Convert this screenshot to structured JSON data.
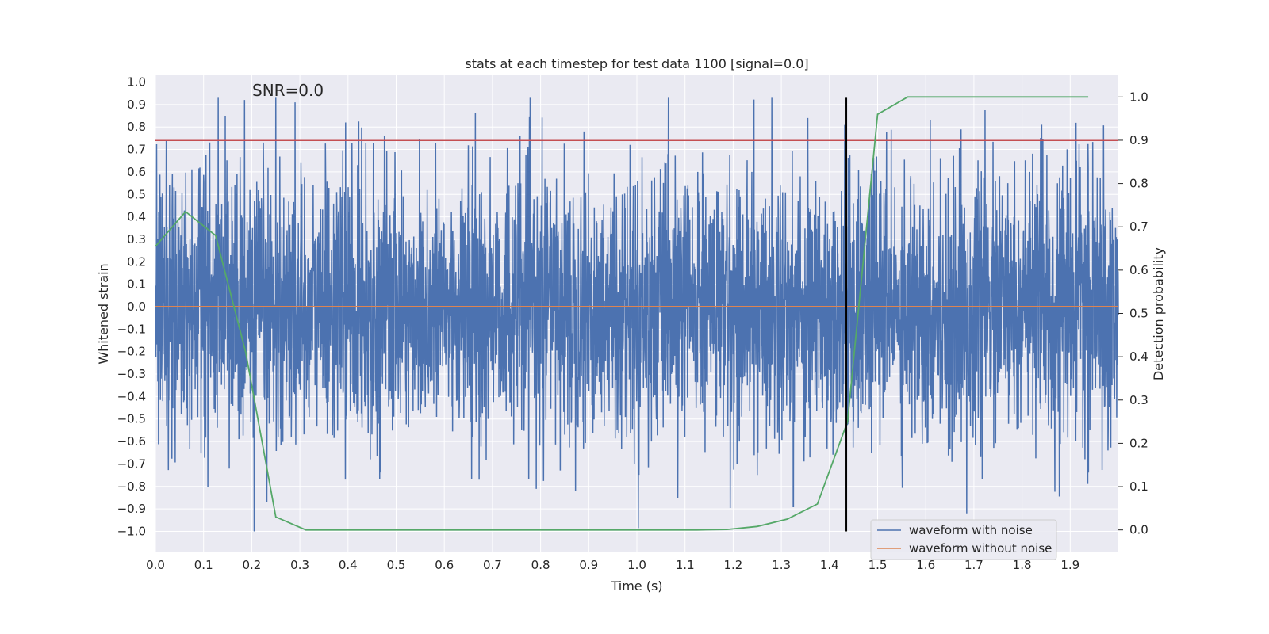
{
  "chart_data": {
    "type": "line",
    "title": "stats at each timestep for test data 1100 [signal=0.0]",
    "xlabel": "Time (s)",
    "ylabel": "Whitened strain",
    "y2label": "Detection probability",
    "xlim": [
      0.0,
      2.0
    ],
    "ylim": [
      -1.09,
      1.03
    ],
    "y2lim": [
      -0.05,
      1.05
    ],
    "xticks": [
      "0.0",
      "0.1",
      "0.2",
      "0.3",
      "0.4",
      "0.5",
      "0.6",
      "0.7",
      "0.8",
      "0.9",
      "1.0",
      "1.1",
      "1.2",
      "1.3",
      "1.4",
      "1.5",
      "1.6",
      "1.7",
      "1.8",
      "1.9"
    ],
    "yticks": [
      "1.0",
      "0.9",
      "0.8",
      "0.7",
      "0.6",
      "0.5",
      "0.4",
      "0.3",
      "0.2",
      "0.1",
      "0.0",
      "−0.1",
      "−0.2",
      "−0.3",
      "−0.4",
      "−0.5",
      "−0.6",
      "−0.7",
      "−0.8",
      "−0.9",
      "−1.0"
    ],
    "y2ticks": [
      "1.0",
      "0.9",
      "0.8",
      "0.7",
      "0.6",
      "0.5",
      "0.4",
      "0.3",
      "0.2",
      "0.1",
      "0.0"
    ],
    "annotation": "SNR=0.0",
    "grid": true,
    "legend_placement": "lower-right",
    "series": [
      {
        "name": "waveform with noise",
        "axis": "left",
        "color": "#4c72b0",
        "sample_rate_hz": 2048,
        "t_start": 0.0,
        "t_end": 2.0,
        "y_range": [
          -1.0,
          0.93
        ],
        "notable_peaks": [
          {
            "x": 0.145,
            "y": 0.85
          },
          {
            "x": 0.185,
            "y": 0.92
          },
          {
            "x": 0.25,
            "y": 0.93
          },
          {
            "x": 0.395,
            "y": 0.82
          },
          {
            "x": 0.89,
            "y": 0.78
          },
          {
            "x": 1.355,
            "y": 0.84
          },
          {
            "x": 0.205,
            "y": -1.0
          },
          {
            "x": 1.085,
            "y": -0.85
          },
          {
            "x": 1.325,
            "y": -0.89
          },
          {
            "x": 1.685,
            "y": -0.92
          }
        ]
      },
      {
        "name": "waveform without noise",
        "axis": "left",
        "color": "#dd8452",
        "x": [
          0.0,
          2.0
        ],
        "y": [
          0.0,
          0.0
        ]
      },
      {
        "name": "",
        "axis": "right",
        "color": "#55a868",
        "x": [
          0.0,
          0.0625,
          0.125,
          0.1875,
          0.25,
          0.3125,
          0.375,
          0.4375,
          0.5,
          0.5625,
          0.625,
          0.6875,
          0.75,
          0.8125,
          0.875,
          0.9375,
          1.0,
          1.0625,
          1.125,
          1.1875,
          1.25,
          1.3125,
          1.375,
          1.4375,
          1.5,
          1.5625,
          1.625,
          1.6875,
          1.75,
          1.8125,
          1.875,
          1.9375
        ],
        "y": [
          0.655,
          0.735,
          0.68,
          0.41,
          0.03,
          0.0,
          0.0,
          0.0,
          0.0,
          0.0,
          0.0,
          0.0,
          0.0,
          0.0,
          0.0,
          0.0,
          0.0,
          0.0,
          0.0,
          0.001,
          0.008,
          0.025,
          0.06,
          0.25,
          0.96,
          1.0,
          1.0,
          1.0,
          1.0,
          1.0,
          1.0,
          1.0
        ]
      }
    ],
    "hlines": [
      {
        "axis": "left",
        "y": 0.74,
        "color": "#c44e52"
      }
    ],
    "vlines": [
      {
        "x": 1.435,
        "y_from": -1.0,
        "y_to": 0.93,
        "color": "#000000"
      }
    ]
  }
}
